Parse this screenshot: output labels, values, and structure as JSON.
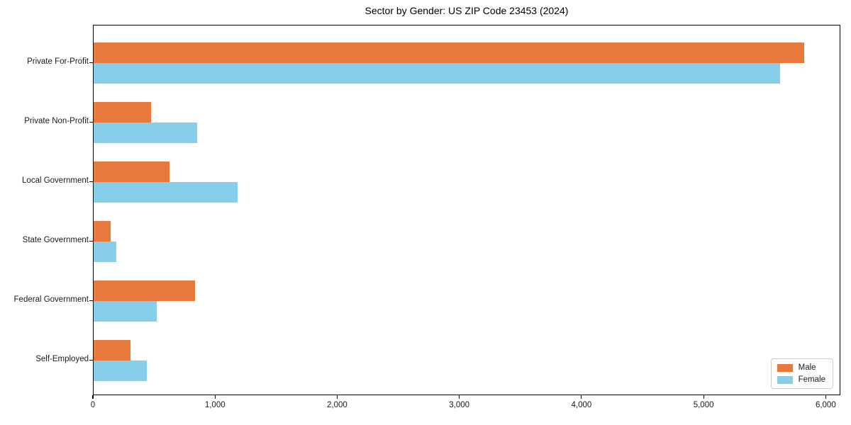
{
  "title": "Sector by Gender: US ZIP Code 23453 (2024)",
  "colors": {
    "male": "#e8793c",
    "female": "#87ceeb",
    "spine": "#000000",
    "legend_border": "#cccccc",
    "background": "#ffffff",
    "text": "#1a1a1a"
  },
  "chart_data": {
    "type": "bar",
    "orientation": "horizontal",
    "title": "Sector by Gender: US ZIP Code 23453 (2024)",
    "categories": [
      "Private For-Profit",
      "Private Non-Profit",
      "Local Government",
      "State Government",
      "Federal Government",
      "Self-Employed"
    ],
    "series": [
      {
        "name": "Male",
        "color": "#e8793c",
        "values": [
          5830,
          470,
          620,
          140,
          830,
          300
        ]
      },
      {
        "name": "Female",
        "color": "#87ceeb",
        "values": [
          5630,
          850,
          1180,
          185,
          520,
          435
        ]
      }
    ],
    "xlabel": "",
    "ylabel": "",
    "xlim": [
      0,
      6120
    ],
    "xticks": [
      0,
      1000,
      2000,
      3000,
      4000,
      5000,
      6000
    ],
    "xtick_labels": [
      "0",
      "1,000",
      "2,000",
      "3,000",
      "4,000",
      "5,000",
      "6,000"
    ],
    "grid": false,
    "legend": {
      "position": "lower right",
      "entries": [
        "Male",
        "Female"
      ]
    }
  }
}
